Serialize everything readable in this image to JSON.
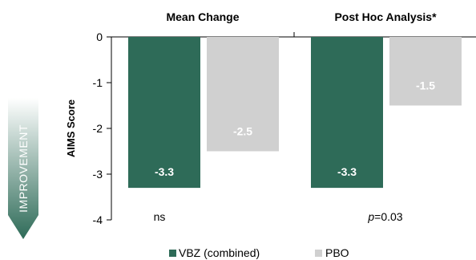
{
  "chart_data": {
    "type": "bar",
    "ylabel": "AIMS Score",
    "ylim": [
      -4,
      0
    ],
    "yticks": [
      0,
      -1,
      -2,
      -3,
      -4
    ],
    "panels": [
      {
        "title": "Mean Change",
        "annotation": "ns",
        "annotation_italic": "",
        "values": [
          -3.3,
          -2.5
        ],
        "labels": [
          "-3.3",
          "-2.5"
        ]
      },
      {
        "title": "Post Hoc Analysis*",
        "annotation": "=0.03",
        "annotation_italic": "p",
        "values": [
          -3.3,
          -1.5
        ],
        "labels": [
          "-3.3",
          "-1.5"
        ]
      }
    ],
    "series": [
      {
        "name": "VBZ (combined)",
        "color": "#2e6b58"
      },
      {
        "name": "PBO",
        "color": "#d0d0d0"
      }
    ],
    "side_arrow": {
      "label": "IMPROVEMENT",
      "colors": [
        "#ffffff",
        "#2e6b58"
      ]
    }
  }
}
